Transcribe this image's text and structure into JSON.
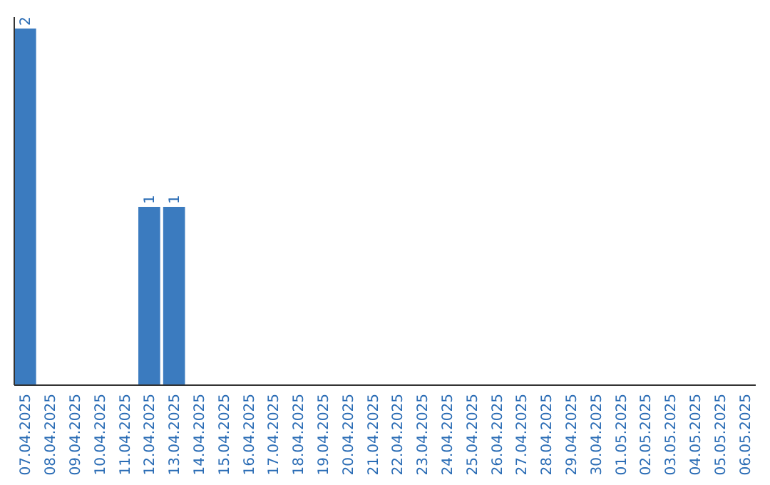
{
  "chart_data": {
    "type": "bar",
    "categories": [
      "07.04.2025",
      "08.04.2025",
      "09.04.2025",
      "10.04.2025",
      "11.04.2025",
      "12.04.2025",
      "13.04.2025",
      "14.04.2025",
      "15.04.2025",
      "16.04.2025",
      "17.04.2025",
      "18.04.2025",
      "19.04.2025",
      "20.04.2025",
      "21.04.2025",
      "22.04.2025",
      "23.04.2025",
      "24.04.2025",
      "25.04.2025",
      "26.04.2025",
      "27.04.2025",
      "28.04.2025",
      "29.04.2025",
      "30.04.2025",
      "01.05.2025",
      "02.05.2025",
      "03.05.2025",
      "04.05.2025",
      "05.05.2025",
      "06.05.2025"
    ],
    "values": [
      2,
      0,
      0,
      0,
      0,
      1,
      1,
      0,
      0,
      0,
      0,
      0,
      0,
      0,
      0,
      0,
      0,
      0,
      0,
      0,
      0,
      0,
      0,
      0,
      0,
      0,
      0,
      0,
      0,
      0
    ],
    "value_labels": [
      "2",
      null,
      null,
      null,
      null,
      "1",
      "1",
      null,
      null,
      null,
      null,
      null,
      null,
      null,
      null,
      null,
      null,
      null,
      null,
      null,
      null,
      null,
      null,
      null,
      null,
      null,
      null,
      null,
      null,
      null
    ],
    "color": "#3b7bbf",
    "tick_labels": "x",
    "grid": false
  }
}
